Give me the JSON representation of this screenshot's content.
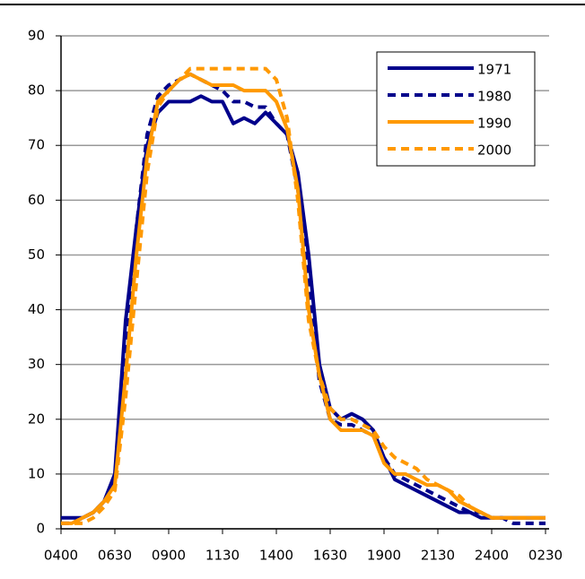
{
  "chart_data": {
    "type": "line",
    "categories": [
      "0400",
      null,
      null,
      null,
      null,
      "0630",
      null,
      null,
      null,
      null,
      "0900",
      null,
      null,
      null,
      null,
      "1130",
      null,
      null,
      null,
      null,
      "1400",
      null,
      null,
      null,
      null,
      "1630",
      null,
      null,
      null,
      null,
      "1900",
      null,
      null,
      null,
      null,
      "2130",
      null,
      null,
      null,
      null,
      "2400",
      null,
      null,
      null,
      null,
      "0230"
    ],
    "series": [
      {
        "name": "1971",
        "color": "#00008b",
        "dash": false,
        "values": [
          2,
          2,
          2,
          3,
          5,
          10,
          38,
          55,
          70,
          76,
          78,
          78,
          78,
          79,
          78,
          78,
          74,
          75,
          74,
          76,
          74,
          72,
          65,
          50,
          30,
          22,
          20,
          21,
          20,
          18,
          13,
          9,
          8,
          7,
          6,
          5,
          4,
          3,
          3,
          2,
          2,
          2,
          2,
          2,
          2,
          2
        ]
      },
      {
        "name": "1980",
        "color": "#00008b",
        "dash": true,
        "values": [
          1,
          1,
          2,
          3,
          5,
          9,
          30,
          55,
          72,
          79,
          81,
          82,
          83,
          82,
          81,
          80,
          78,
          78,
          77,
          77,
          74,
          72,
          62,
          45,
          27,
          20,
          19,
          19,
          18,
          17,
          13,
          10,
          9,
          8,
          7,
          6,
          5,
          4,
          3,
          3,
          2,
          2,
          1,
          1,
          1,
          1
        ]
      },
      {
        "name": "1990",
        "color": "#ff9900",
        "dash": false,
        "values": [
          1,
          1,
          2,
          3,
          5,
          8,
          28,
          50,
          68,
          78,
          80,
          82,
          83,
          82,
          81,
          81,
          81,
          80,
          80,
          80,
          78,
          73,
          62,
          40,
          28,
          20,
          18,
          18,
          18,
          17,
          12,
          10,
          10,
          9,
          8,
          8,
          7,
          5,
          4,
          3,
          2,
          2,
          2,
          2,
          2,
          2
        ]
      },
      {
        "name": "2000",
        "color": "#ff9900",
        "dash": true,
        "values": [
          1,
          1,
          1,
          2,
          4,
          7,
          24,
          45,
          65,
          77,
          80,
          82,
          84,
          84,
          84,
          84,
          84,
          84,
          84,
          84,
          82,
          75,
          60,
          38,
          28,
          22,
          20,
          20,
          19,
          18,
          15,
          13,
          12,
          11,
          9,
          8,
          7,
          6,
          4,
          3,
          2,
          2,
          2,
          2,
          2,
          2
        ]
      }
    ],
    "ylim": [
      0,
      90
    ],
    "yticks": [
      0,
      10,
      20,
      30,
      40,
      50,
      60,
      70,
      80,
      90
    ],
    "grid": true,
    "legend": "top-right"
  }
}
